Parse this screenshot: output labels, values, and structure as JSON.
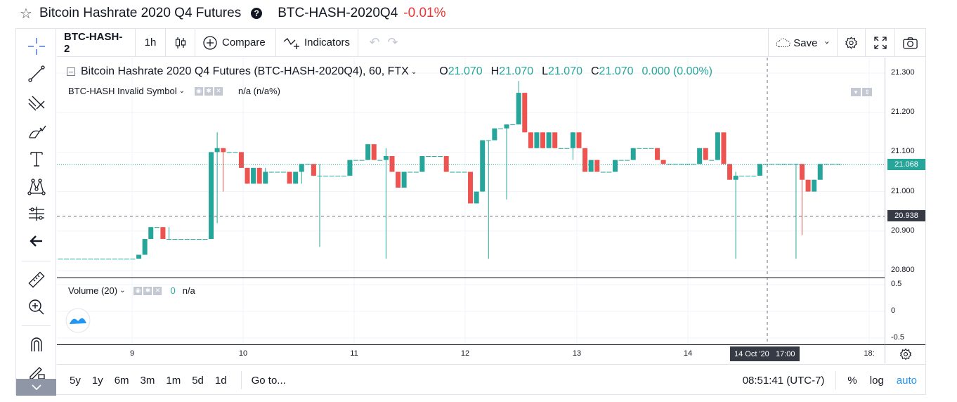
{
  "header": {
    "title": "Bitcoin Hashrate 2020 Q4 Futures",
    "symbol": "BTC-HASH-2020Q4",
    "change": "-0.01%"
  },
  "toolbar": {
    "symbol": "BTC-HASH-2",
    "interval": "1h",
    "compare": "Compare",
    "indicators": "Indicators",
    "save": "Save"
  },
  "legend": {
    "title": "Bitcoin Hashrate 2020 Q4 Futures (BTC-HASH-2020Q4), 60, FTX",
    "o_label": "O",
    "o_val": "21.070",
    "h_label": "H",
    "h_val": "21.070",
    "l_label": "L",
    "l_val": "21.070",
    "c_label": "C",
    "c_val": "21.070",
    "chg": "0.000 (0.00%)",
    "invalid": "BTC-HASH Invalid Symbol",
    "na": "n/a (n/a%)"
  },
  "volume": {
    "title": "Volume (20)",
    "value": "0",
    "na": "n/a"
  },
  "axis": {
    "prices": [
      "21.300",
      "21.200",
      "21.100",
      "21.000",
      "20.900",
      "20.800"
    ],
    "current_price": "21.068",
    "crosshair_price": "20.938",
    "vol_ticks": [
      "0.5",
      "0",
      "-0.5"
    ],
    "time_ticks": [
      "9",
      "10",
      "11",
      "12",
      "13",
      "14",
      "18:"
    ],
    "crosshair_time": "14 Oct '20   17:00"
  },
  "bottom": {
    "ranges": [
      "5y",
      "1y",
      "6m",
      "3m",
      "1m",
      "5d",
      "1d"
    ],
    "goto": "Go to...",
    "clock": "08:51:41 (UTC-7)",
    "pct": "%",
    "log": "log",
    "auto": "auto"
  },
  "colors": {
    "up": "#26a69a",
    "down": "#ef5350",
    "accent": "#2962ff",
    "auto": "#2196f3"
  },
  "chart_data": {
    "type": "candlestick",
    "title": "Bitcoin Hashrate 2020 Q4 Futures (BTC-HASH-2020Q4), 60, FTX",
    "interval": "60",
    "x_ticks": [
      "9",
      "10",
      "11",
      "12",
      "13",
      "14"
    ],
    "ylim": [
      20.78,
      21.32
    ],
    "current_price": 21.068,
    "candles": [
      {
        "o": 20.83,
        "h": 20.83,
        "l": 20.83,
        "c": 20.83
      },
      {
        "o": 20.83,
        "h": 20.83,
        "l": 20.83,
        "c": 20.83
      },
      {
        "o": 20.83,
        "h": 20.83,
        "l": 20.83,
        "c": 20.83
      },
      {
        "o": 20.83,
        "h": 20.83,
        "l": 20.83,
        "c": 20.83
      },
      {
        "o": 20.83,
        "h": 20.83,
        "l": 20.83,
        "c": 20.83
      },
      {
        "o": 20.83,
        "h": 20.83,
        "l": 20.83,
        "c": 20.83
      },
      {
        "o": 20.83,
        "h": 20.83,
        "l": 20.83,
        "c": 20.83
      },
      {
        "o": 20.83,
        "h": 20.83,
        "l": 20.83,
        "c": 20.83
      },
      {
        "o": 20.83,
        "h": 20.83,
        "l": 20.83,
        "c": 20.83
      },
      {
        "o": 20.83,
        "h": 20.83,
        "l": 20.83,
        "c": 20.83
      },
      {
        "o": 20.83,
        "h": 20.83,
        "l": 20.83,
        "c": 20.83
      },
      {
        "o": 20.83,
        "h": 20.83,
        "l": 20.83,
        "c": 20.83
      },
      {
        "o": 20.83,
        "h": 20.83,
        "l": 20.83,
        "c": 20.83
      },
      {
        "o": 20.83,
        "h": 20.84,
        "l": 20.83,
        "c": 20.84
      },
      {
        "o": 20.84,
        "h": 20.88,
        "l": 20.84,
        "c": 20.88
      },
      {
        "o": 20.88,
        "h": 20.91,
        "l": 20.88,
        "c": 20.91
      },
      {
        "o": 20.91,
        "h": 20.91,
        "l": 20.91,
        "c": 20.91
      },
      {
        "o": 20.91,
        "h": 20.91,
        "l": 20.88,
        "c": 20.88
      },
      {
        "o": 20.88,
        "h": 20.91,
        "l": 20.88,
        "c": 20.88
      },
      {
        "o": 20.88,
        "h": 20.88,
        "l": 20.88,
        "c": 20.88
      },
      {
        "o": 20.88,
        "h": 20.88,
        "l": 20.88,
        "c": 20.88
      },
      {
        "o": 20.88,
        "h": 20.88,
        "l": 20.88,
        "c": 20.88
      },
      {
        "o": 20.88,
        "h": 20.88,
        "l": 20.88,
        "c": 20.88
      },
      {
        "o": 20.88,
        "h": 20.88,
        "l": 20.88,
        "c": 20.88
      },
      {
        "o": 20.88,
        "h": 20.88,
        "l": 20.88,
        "c": 20.88
      },
      {
        "o": 20.88,
        "h": 21.1,
        "l": 20.88,
        "c": 21.1
      },
      {
        "o": 21.1,
        "h": 21.15,
        "l": 20.92,
        "c": 21.11
      },
      {
        "o": 21.11,
        "h": 21.11,
        "l": 21.0,
        "c": 21.1
      },
      {
        "o": 21.1,
        "h": 21.1,
        "l": 21.1,
        "c": 21.1
      },
      {
        "o": 21.1,
        "h": 21.1,
        "l": 21.1,
        "c": 21.1
      },
      {
        "o": 21.1,
        "h": 21.1,
        "l": 21.06,
        "c": 21.06
      },
      {
        "o": 21.06,
        "h": 21.06,
        "l": 21.02,
        "c": 21.02
      },
      {
        "o": 21.02,
        "h": 21.06,
        "l": 21.02,
        "c": 21.06
      },
      {
        "o": 21.06,
        "h": 21.06,
        "l": 21.02,
        "c": 21.02
      },
      {
        "o": 21.02,
        "h": 21.06,
        "l": 21.02,
        "c": 21.05
      },
      {
        "o": 21.05,
        "h": 21.05,
        "l": 21.05,
        "c": 21.05
      },
      {
        "o": 21.05,
        "h": 21.05,
        "l": 21.05,
        "c": 21.05
      },
      {
        "o": 21.05,
        "h": 21.05,
        "l": 21.05,
        "c": 21.05
      },
      {
        "o": 21.05,
        "h": 21.05,
        "l": 21.02,
        "c": 21.02
      },
      {
        "o": 21.02,
        "h": 21.05,
        "l": 21.02,
        "c": 21.05
      },
      {
        "o": 21.05,
        "h": 21.07,
        "l": 21.02,
        "c": 21.07
      },
      {
        "o": 21.07,
        "h": 21.07,
        "l": 21.07,
        "c": 21.07
      },
      {
        "o": 21.07,
        "h": 21.07,
        "l": 21.04,
        "c": 21.04
      },
      {
        "o": 21.04,
        "h": 21.07,
        "l": 20.86,
        "c": 21.04
      },
      {
        "o": 21.04,
        "h": 21.04,
        "l": 21.04,
        "c": 21.04
      },
      {
        "o": 21.04,
        "h": 21.04,
        "l": 21.04,
        "c": 21.04
      },
      {
        "o": 21.04,
        "h": 21.04,
        "l": 21.04,
        "c": 21.04
      },
      {
        "o": 21.04,
        "h": 21.04,
        "l": 21.04,
        "c": 21.04
      },
      {
        "o": 21.04,
        "h": 21.08,
        "l": 21.04,
        "c": 21.08
      },
      {
        "o": 21.08,
        "h": 21.08,
        "l": 21.08,
        "c": 21.08
      },
      {
        "o": 21.08,
        "h": 21.08,
        "l": 21.08,
        "c": 21.08
      },
      {
        "o": 21.08,
        "h": 21.12,
        "l": 21.08,
        "c": 21.12
      },
      {
        "o": 21.12,
        "h": 21.12,
        "l": 21.08,
        "c": 21.08
      },
      {
        "o": 21.08,
        "h": 21.08,
        "l": 21.08,
        "c": 21.08
      },
      {
        "o": 21.08,
        "h": 21.11,
        "l": 20.83,
        "c": 21.09
      },
      {
        "o": 21.09,
        "h": 21.09,
        "l": 21.05,
        "c": 21.05
      },
      {
        "o": 21.05,
        "h": 21.05,
        "l": 21.01,
        "c": 21.01
      },
      {
        "o": 21.01,
        "h": 21.05,
        "l": 21.01,
        "c": 21.05
      },
      {
        "o": 21.05,
        "h": 21.05,
        "l": 21.05,
        "c": 21.05
      },
      {
        "o": 21.05,
        "h": 21.05,
        "l": 21.05,
        "c": 21.05
      },
      {
        "o": 21.05,
        "h": 21.09,
        "l": 21.05,
        "c": 21.09
      },
      {
        "o": 21.09,
        "h": 21.09,
        "l": 21.09,
        "c": 21.09
      },
      {
        "o": 21.09,
        "h": 21.09,
        "l": 21.09,
        "c": 21.09
      },
      {
        "o": 21.09,
        "h": 21.09,
        "l": 21.09,
        "c": 21.09
      },
      {
        "o": 21.09,
        "h": 21.09,
        "l": 21.05,
        "c": 21.05
      },
      {
        "o": 21.05,
        "h": 21.05,
        "l": 21.05,
        "c": 21.05
      },
      {
        "o": 21.05,
        "h": 21.05,
        "l": 21.05,
        "c": 21.05
      },
      {
        "o": 21.05,
        "h": 21.05,
        "l": 21.05,
        "c": 21.05
      },
      {
        "o": 21.05,
        "h": 21.05,
        "l": 20.97,
        "c": 20.97
      },
      {
        "o": 20.97,
        "h": 21.0,
        "l": 20.97,
        "c": 21.0
      },
      {
        "o": 21.0,
        "h": 21.13,
        "l": 21.0,
        "c": 21.13
      },
      {
        "o": 21.13,
        "h": 21.13,
        "l": 20.83,
        "c": 21.13
      },
      {
        "o": 21.13,
        "h": 21.16,
        "l": 21.13,
        "c": 21.16
      },
      {
        "o": 21.16,
        "h": 21.16,
        "l": 21.16,
        "c": 21.16
      },
      {
        "o": 21.16,
        "h": 21.17,
        "l": 20.98,
        "c": 21.17
      },
      {
        "o": 21.17,
        "h": 21.17,
        "l": 21.17,
        "c": 21.17
      },
      {
        "o": 21.17,
        "h": 21.28,
        "l": 21.17,
        "c": 21.25
      },
      {
        "o": 21.25,
        "h": 21.25,
        "l": 21.15,
        "c": 21.15
      },
      {
        "o": 21.15,
        "h": 21.15,
        "l": 21.11,
        "c": 21.11
      },
      {
        "o": 21.11,
        "h": 21.15,
        "l": 21.11,
        "c": 21.15
      },
      {
        "o": 21.15,
        "h": 21.15,
        "l": 21.11,
        "c": 21.11
      },
      {
        "o": 21.11,
        "h": 21.15,
        "l": 21.11,
        "c": 21.15
      },
      {
        "o": 21.15,
        "h": 21.15,
        "l": 21.11,
        "c": 21.11
      },
      {
        "o": 21.11,
        "h": 21.11,
        "l": 21.11,
        "c": 21.11
      },
      {
        "o": 21.11,
        "h": 21.11,
        "l": 21.11,
        "c": 21.11
      },
      {
        "o": 21.11,
        "h": 21.15,
        "l": 21.08,
        "c": 21.15
      },
      {
        "o": 21.15,
        "h": 21.15,
        "l": 21.11,
        "c": 21.11
      },
      {
        "o": 21.11,
        "h": 21.11,
        "l": 21.05,
        "c": 21.05
      },
      {
        "o": 21.05,
        "h": 21.08,
        "l": 21.05,
        "c": 21.08
      },
      {
        "o": 21.08,
        "h": 21.08,
        "l": 21.05,
        "c": 21.05
      },
      {
        "o": 21.05,
        "h": 21.05,
        "l": 21.05,
        "c": 21.05
      },
      {
        "o": 21.05,
        "h": 21.05,
        "l": 21.05,
        "c": 21.05
      },
      {
        "o": 21.05,
        "h": 21.08,
        "l": 21.05,
        "c": 21.08
      },
      {
        "o": 21.08,
        "h": 21.08,
        "l": 21.08,
        "c": 21.08
      },
      {
        "o": 21.08,
        "h": 21.08,
        "l": 21.08,
        "c": 21.08
      },
      {
        "o": 21.08,
        "h": 21.11,
        "l": 21.08,
        "c": 21.11
      },
      {
        "o": 21.11,
        "h": 21.11,
        "l": 21.11,
        "c": 21.11
      },
      {
        "o": 21.11,
        "h": 21.11,
        "l": 21.11,
        "c": 21.11
      },
      {
        "o": 21.11,
        "h": 21.11,
        "l": 21.11,
        "c": 21.11
      },
      {
        "o": 21.11,
        "h": 21.11,
        "l": 21.08,
        "c": 21.08
      },
      {
        "o": 21.08,
        "h": 21.08,
        "l": 21.07,
        "c": 21.07
      },
      {
        "o": 21.07,
        "h": 21.07,
        "l": 21.07,
        "c": 21.07
      },
      {
        "o": 21.07,
        "h": 21.07,
        "l": 21.07,
        "c": 21.07
      },
      {
        "o": 21.07,
        "h": 21.07,
        "l": 21.07,
        "c": 21.07
      },
      {
        "o": 21.07,
        "h": 21.07,
        "l": 21.07,
        "c": 21.07
      },
      {
        "o": 21.07,
        "h": 21.07,
        "l": 21.07,
        "c": 21.07
      },
      {
        "o": 21.07,
        "h": 21.11,
        "l": 21.07,
        "c": 21.11
      },
      {
        "o": 21.11,
        "h": 21.11,
        "l": 21.08,
        "c": 21.08
      },
      {
        "o": 21.08,
        "h": 21.08,
        "l": 21.08,
        "c": 21.08
      },
      {
        "o": 21.08,
        "h": 21.15,
        "l": 21.08,
        "c": 21.15
      },
      {
        "o": 21.15,
        "h": 21.15,
        "l": 21.07,
        "c": 21.07
      },
      {
        "o": 21.07,
        "h": 21.07,
        "l": 21.03,
        "c": 21.03
      },
      {
        "o": 21.03,
        "h": 21.05,
        "l": 20.83,
        "c": 21.04
      },
      {
        "o": 21.04,
        "h": 21.04,
        "l": 21.04,
        "c": 21.04
      },
      {
        "o": 21.04,
        "h": 21.04,
        "l": 21.04,
        "c": 21.04
      },
      {
        "o": 21.04,
        "h": 21.04,
        "l": 21.04,
        "c": 21.04
      },
      {
        "o": 21.04,
        "h": 21.07,
        "l": 21.04,
        "c": 21.07
      },
      {
        "o": 21.07,
        "h": 21.07,
        "l": 21.07,
        "c": 21.07
      },
      {
        "o": 21.07,
        "h": 21.07,
        "l": 21.07,
        "c": 21.07
      },
      {
        "o": 21.07,
        "h": 21.07,
        "l": 21.07,
        "c": 21.07
      },
      {
        "o": 21.07,
        "h": 21.07,
        "l": 21.07,
        "c": 21.07
      },
      {
        "o": 21.07,
        "h": 21.07,
        "l": 21.07,
        "c": 21.07
      },
      {
        "o": 21.07,
        "h": 21.07,
        "l": 20.83,
        "c": 21.07
      },
      {
        "o": 21.07,
        "h": 21.07,
        "l": 20.89,
        "c": 21.03
      },
      {
        "o": 21.03,
        "h": 21.03,
        "l": 21.0,
        "c": 21.0
      },
      {
        "o": 21.0,
        "h": 21.03,
        "l": 21.0,
        "c": 21.03
      },
      {
        "o": 21.03,
        "h": 21.07,
        "l": 21.03,
        "c": 21.07
      },
      {
        "o": 21.07,
        "h": 21.07,
        "l": 21.07,
        "c": 21.07
      },
      {
        "o": 21.07,
        "h": 21.07,
        "l": 21.07,
        "c": 21.07
      },
      {
        "o": 21.07,
        "h": 21.07,
        "l": 21.07,
        "c": 21.07
      }
    ]
  }
}
